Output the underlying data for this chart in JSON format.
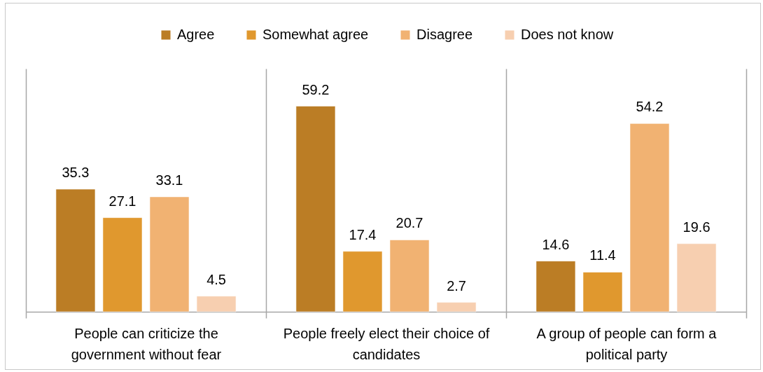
{
  "chart_data": {
    "type": "bar",
    "categories": [
      "People can criticize the government without fear",
      "People freely elect their choice of candidates",
      "A group of people can form a political party"
    ],
    "series": [
      {
        "name": "Agree",
        "color": "#bb7d25",
        "values": [
          35.3,
          59.2,
          14.6
        ]
      },
      {
        "name": "Somewhat agree",
        "color": "#e0982e",
        "values": [
          27.1,
          17.4,
          11.4
        ]
      },
      {
        "name": "Disagree",
        "color": "#f1b272",
        "values": [
          33.1,
          20.7,
          54.2
        ]
      },
      {
        "name": "Does not know",
        "color": "#f7cfb0",
        "values": [
          4.5,
          2.7,
          19.6
        ]
      }
    ],
    "ylim": [
      0,
      70
    ],
    "data_labels": true,
    "legend": "top",
    "grid": "x",
    "tick_labels": "x"
  }
}
